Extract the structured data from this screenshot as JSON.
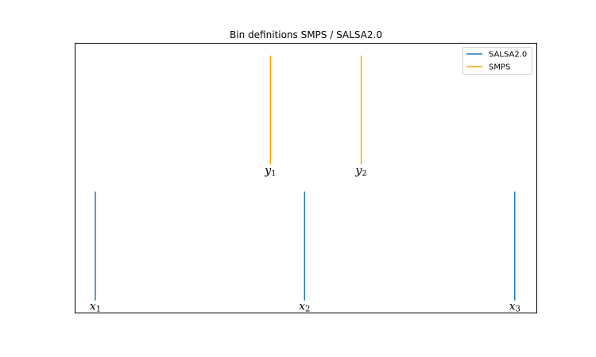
{
  "chart_data": {
    "type": "line",
    "title": "Bin definitions SMPS / SALSA2.0",
    "xlabel": "",
    "ylabel": "",
    "grid": false,
    "axes_ticks": false,
    "legend_position": "top-right",
    "xlim": [
      0,
      10
    ],
    "ylim": [
      0,
      10
    ],
    "series": [
      {
        "name": "SALSA2.0",
        "color": "#1f77b4",
        "lines": [
          {
            "x": 0.43,
            "y": [
              0.45,
              4.5
            ],
            "label_base": "x",
            "label_sub": "1"
          },
          {
            "x": 4.97,
            "y": [
              0.45,
              4.5
            ],
            "label_base": "x",
            "label_sub": "2"
          },
          {
            "x": 9.53,
            "y": [
              0.45,
              4.5
            ],
            "label_base": "x",
            "label_sub": "3"
          }
        ]
      },
      {
        "name": "SMPS",
        "color": "#ffa500",
        "lines": [
          {
            "x": 4.23,
            "y": [
              5.5,
              9.55
            ],
            "label_base": "y",
            "label_sub": "1"
          },
          {
            "x": 6.2,
            "y": [
              5.5,
              9.55
            ],
            "label_base": "y",
            "label_sub": "2"
          }
        ]
      }
    ]
  }
}
